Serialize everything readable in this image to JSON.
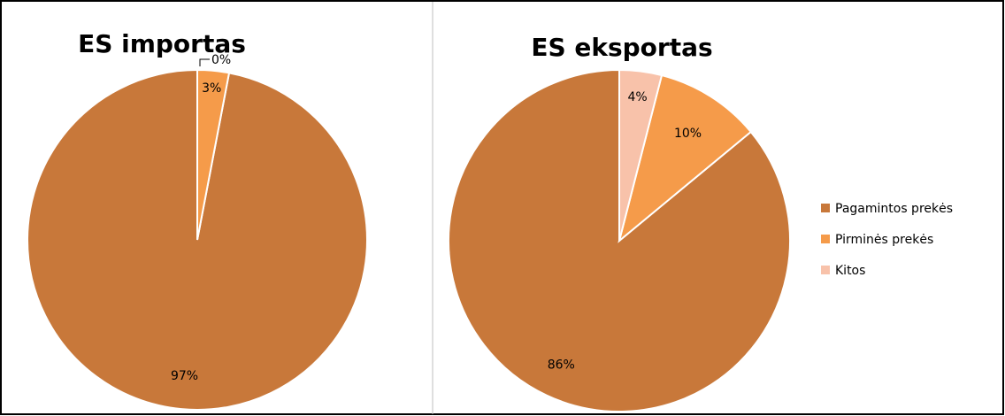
{
  "chart_data": [
    {
      "type": "pie",
      "title": "ES importas",
      "categories": [
        "Pagamintos prekės",
        "Pirminės prekės",
        "Kitos"
      ],
      "values": [
        97,
        3,
        0
      ],
      "labels": [
        "97%",
        "3%",
        "0%"
      ],
      "colors": [
        "#C8783A",
        "#F59B4A",
        "#F8C2AA"
      ],
      "start_angle_deg": 0,
      "direction": "counterclockwise"
    },
    {
      "type": "pie",
      "title": "ES eksportas",
      "categories": [
        "Pagamintos prekės",
        "Pirminės prekės",
        "Kitos"
      ],
      "values": [
        86,
        10,
        4
      ],
      "labels": [
        "86%",
        "10%",
        "4%"
      ],
      "colors": [
        "#C8783A",
        "#F59B4A",
        "#F8C2AA"
      ],
      "start_angle_deg": 0,
      "direction": "counterclockwise",
      "legend_position": "right"
    }
  ],
  "legend": {
    "items": [
      {
        "label": "Pagamintos prekės",
        "color": "#C8783A"
      },
      {
        "label": "Pirminės prekės",
        "color": "#F59B4A"
      },
      {
        "label": "Kitos",
        "color": "#F8C2AA"
      }
    ]
  }
}
